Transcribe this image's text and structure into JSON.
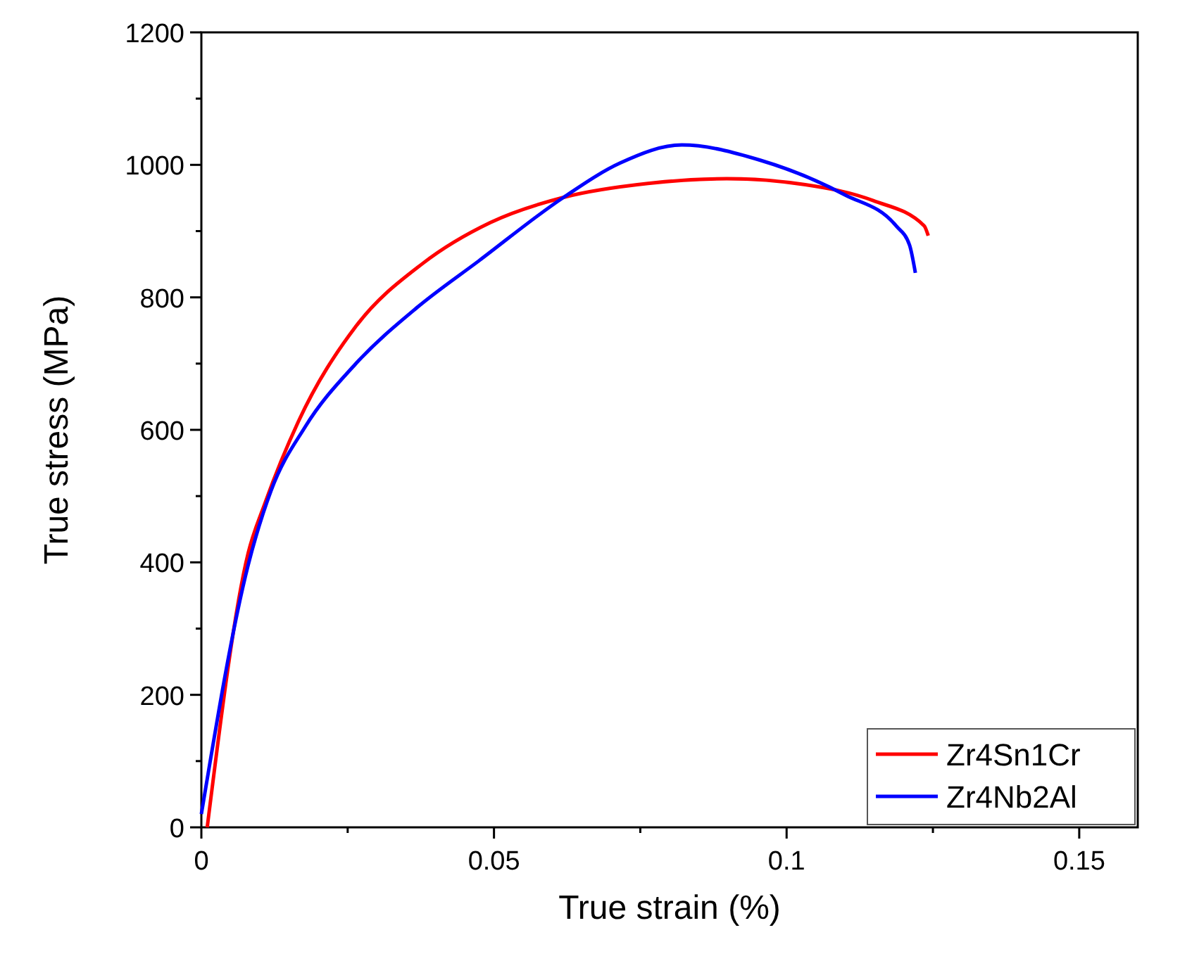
{
  "chart_data": {
    "type": "line",
    "xlabel": "True strain (%)",
    "ylabel": "True stress (MPa)",
    "xlim": [
      0,
      0.16
    ],
    "xticks": [
      0,
      0.05,
      0.1,
      0.15
    ],
    "ylim": [
      0,
      1200
    ],
    "yticks": [
      0,
      200,
      400,
      600,
      800,
      1000,
      1200
    ],
    "legend": "bottom right",
    "grid": false,
    "marker": "none",
    "line_style": "solid",
    "series": [
      {
        "name": "Zr4Sn1Cr",
        "color": "#ff0000",
        "x": [
          0.001,
          0.008,
          0.0109,
          0.0166,
          0.0263,
          0.0378,
          0.0494,
          0.0619,
          0.0763,
          0.0898,
          0.1032,
          0.1148,
          0.1235,
          0.1242
        ],
        "values": [
          0,
          414,
          490,
          613,
          755,
          851,
          913,
          951,
          972,
          979,
          970,
          946,
          908,
          893
        ]
      },
      {
        "name": "Zr4Nb2Al",
        "color": "#0000ff",
        "x": [
          0,
          0.008,
          0.0119,
          0.0177,
          0.0263,
          0.0369,
          0.0474,
          0.0619,
          0.0716,
          0.0821,
          0.0955,
          0.1099,
          0.1187,
          0.121,
          0.122
        ],
        "values": [
          20,
          396,
          508,
          604,
          699,
          785,
          855,
          951,
          1003,
          1030,
          1007,
          955,
          908,
          879,
          837
        ]
      }
    ]
  }
}
